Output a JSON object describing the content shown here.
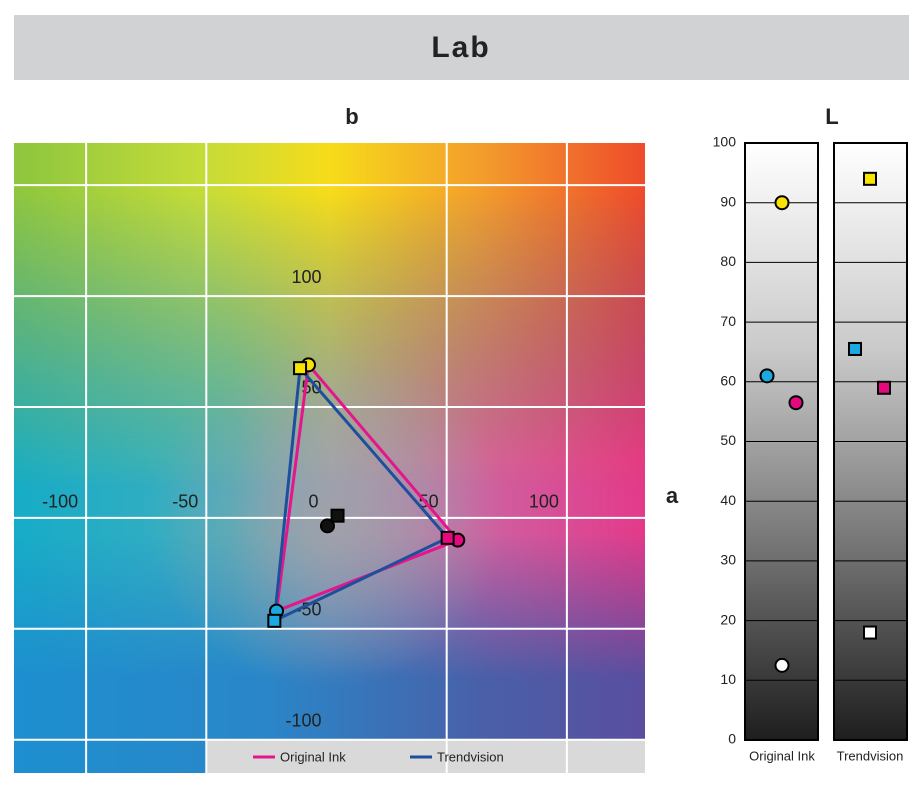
{
  "chart_data": {
    "type": "lab",
    "title": "Lab",
    "ab": {
      "x_label": "a",
      "y_label": "b",
      "xlim": [
        -130,
        132.5
      ],
      "ylim": [
        -115,
        169
      ],
      "xticks": [
        -100,
        -50,
        0,
        50,
        100
      ],
      "yticks": [
        -100,
        -50,
        50,
        100
      ],
      "xgrid": [
        -100,
        -50,
        50,
        100
      ],
      "ygrid": [
        -100,
        -50,
        0,
        50,
        100,
        150
      ],
      "point_colors": [
        "#f7e400",
        "#e5087e",
        "#1ba9e1",
        "#111111"
      ]
    },
    "lightness": {
      "label": "L",
      "ylim": [
        0,
        100
      ],
      "yticks": [
        0,
        10,
        20,
        30,
        40,
        50,
        60,
        70,
        80,
        90,
        100
      ],
      "point_colors": [
        "#f7e400",
        "#e5087e",
        "#1ba9e1",
        "#ffffff"
      ]
    },
    "series": [
      {
        "name": "Original Ink",
        "color": "#e5168b",
        "marker": "circle",
        "a": [
          -7.5,
          54.6,
          -20.8,
          0.4
        ],
        "b": [
          69,
          -10,
          -42,
          -3.6
        ],
        "L": [
          90,
          56.5,
          61,
          12.5
        ]
      },
      {
        "name": "Trendvision",
        "color": "#1d4f9c",
        "marker": "square",
        "a": [
          -11,
          50.4,
          -21.7,
          4.6
        ],
        "b": [
          67.5,
          -9,
          -46.4,
          1
        ],
        "L": [
          94,
          59,
          65.5,
          18
        ]
      }
    ]
  }
}
